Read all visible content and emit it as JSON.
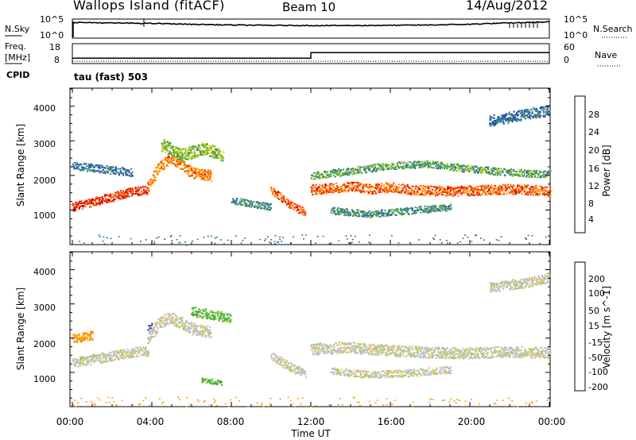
{
  "header": {
    "station": "Wallops Island (fitACF)",
    "beam": "Beam 10",
    "date": "14/Aug/2012"
  },
  "top_panels": {
    "nsky_label": "N.Sky",
    "nsearch_label": "N.Search",
    "noise_ticks": [
      "10^5",
      "10^0"
    ],
    "freq_label_line1": "Freq.",
    "freq_label_line2": "[MHz]",
    "freq_ticks": [
      "18",
      "8"
    ],
    "nave_label": "Nave",
    "nave_ticks": [
      "60",
      "0"
    ],
    "cpid_label": "CPID",
    "cpid_value": "tau (fast) 503"
  },
  "axes": {
    "ylabel": "Slant Range [km]",
    "xlabel": "Time UT",
    "y_ticks": [
      "1000",
      "2000",
      "3000",
      "4000"
    ],
    "x_ticks": [
      "00:00",
      "04:00",
      "08:00",
      "12:00",
      "16:00",
      "20:00",
      "00:00"
    ]
  },
  "colors": {
    "power_scale": [
      "#0000ee",
      "#2244cc",
      "#2e6e9e",
      "#3a8a6a",
      "#66b33a",
      "#c8d200",
      "#ffb000",
      "#ff7a00",
      "#f03000",
      "#e00000"
    ],
    "velocity_scale": [
      "#2233cc",
      "#227733",
      "#33aa33",
      "#99cc33",
      "#c0c0c0",
      "#ffcc33",
      "#ff9900",
      "#ff6600",
      "#ee2200",
      "#dd0000"
    ]
  },
  "chart_data": [
    {
      "type": "line",
      "title": "N.Sky / N.Search",
      "x_range_hours": [
        0,
        24
      ],
      "y_scale": "log",
      "ylim": [
        1,
        100000
      ],
      "series": [
        {
          "name": "N.Sky",
          "x": [
            0,
            2,
            4,
            6,
            8,
            10,
            12,
            14,
            16,
            18,
            20,
            22,
            24
          ],
          "values": [
            30000,
            20000,
            15000,
            8000,
            5000,
            4000,
            3500,
            3500,
            4000,
            5000,
            8000,
            20000,
            40000
          ]
        }
      ]
    },
    {
      "type": "line",
      "title": "Freq. / Nave",
      "x_range_hours": [
        0,
        24
      ],
      "freq_ylim": [
        8,
        18
      ],
      "nave_ylim": [
        0,
        60
      ],
      "series": [
        {
          "name": "Freq.",
          "x": [
            0,
            12,
            12,
            24
          ],
          "values": [
            10.5,
            10.5,
            13.5,
            13.5
          ]
        },
        {
          "name": "Nave",
          "x": [
            0,
            24
          ],
          "values": [
            5,
            5
          ]
        }
      ]
    },
    {
      "type": "heatmap",
      "title": "Power [dB]",
      "x_range_hours": [
        0,
        24
      ],
      "ylim": [
        0,
        4500
      ],
      "colorbar_label": "Power [dB]",
      "colorbar_ticks": [
        4,
        8,
        12,
        16,
        20,
        24,
        28
      ],
      "colorbar_range": [
        0,
        30
      ],
      "features": [
        {
          "t": [
            0,
            1,
            2,
            3,
            3.8
          ],
          "r": [
            1100,
            1250,
            1400,
            1550,
            1600
          ],
          "w": 180,
          "p": 26
        },
        {
          "t": [
            3.8,
            4.4,
            5,
            6,
            7
          ],
          "r": [
            1700,
            2300,
            2500,
            2100,
            2000
          ],
          "w": 220,
          "p": 22
        },
        {
          "t": [
            4.5,
            5.5,
            6.6,
            7.6
          ],
          "r": [
            2900,
            2600,
            2800,
            2600
          ],
          "w": 260,
          "p": 14
        },
        {
          "t": [
            10,
            11,
            11.7
          ],
          "r": [
            1600,
            1150,
            950
          ],
          "w": 160,
          "p": 24
        },
        {
          "t": [
            12,
            13,
            14,
            15,
            16,
            17,
            18,
            19,
            20,
            21,
            22,
            23,
            24
          ],
          "r": [
            1600,
            1650,
            1700,
            1620,
            1680,
            1600,
            1580,
            1560,
            1580,
            1600,
            1620,
            1600,
            1550
          ],
          "w": 200,
          "p": 24
        },
        {
          "t": [
            12,
            14,
            16,
            18,
            20,
            22,
            24
          ],
          "r": [
            2000,
            2150,
            2300,
            2350,
            2200,
            2100,
            2050
          ],
          "w": 150,
          "p": 12
        },
        {
          "t": [
            13,
            15,
            17,
            19
          ],
          "r": [
            1000,
            900,
            1000,
            1100
          ],
          "w": 140,
          "p": 10
        },
        {
          "t": [
            21,
            22.5,
            24
          ],
          "r": [
            3600,
            3750,
            3900
          ],
          "w": 220,
          "p": 8
        },
        {
          "t": [
            0,
            1.5,
            3
          ],
          "r": [
            2300,
            2200,
            2100
          ],
          "w": 160,
          "p": 8
        },
        {
          "t": [
            8,
            9,
            10
          ],
          "r": [
            1300,
            1200,
            1100
          ],
          "w": 140,
          "p": 10
        }
      ]
    },
    {
      "type": "heatmap",
      "title": "Velocity [m s^-1]",
      "x_range_hours": [
        0,
        24
      ],
      "ylim": [
        0,
        4500
      ],
      "colorbar_label": "Velocity [m s^-1]",
      "colorbar_ticks": [
        200,
        100,
        50,
        15,
        -15,
        -50,
        -100,
        -200
      ],
      "features": [
        {
          "t": [
            0,
            1,
            2,
            3,
            3.8
          ],
          "r": [
            1300,
            1400,
            1500,
            1600,
            1650
          ],
          "w": 200,
          "v": 0
        },
        {
          "t": [
            3.8,
            4.4,
            5,
            6,
            7
          ],
          "r": [
            2000,
            2500,
            2600,
            2300,
            2200
          ],
          "w": 250,
          "v": 0
        },
        {
          "t": [
            12,
            14,
            16,
            18,
            20,
            22,
            24
          ],
          "r": [
            1700,
            1750,
            1650,
            1600,
            1580,
            1620,
            1580
          ],
          "w": 230,
          "v": 0
        },
        {
          "t": [
            13,
            15,
            17,
            19
          ],
          "r": [
            1050,
            950,
            1000,
            1100
          ],
          "w": 150,
          "v": 0
        },
        {
          "t": [
            10,
            11,
            11.7
          ],
          "r": [
            1500,
            1150,
            1000
          ],
          "w": 180,
          "v": 0
        },
        {
          "t": [
            21,
            23,
            24
          ],
          "r": [
            3500,
            3650,
            3800
          ],
          "w": 200,
          "v": 0
        },
        {
          "t": [
            0,
            1
          ],
          "r": [
            2000,
            2100
          ],
          "w": 180,
          "v": -60
        },
        {
          "t": [
            3.8,
            4.0
          ],
          "r": [
            2300,
            2450
          ],
          "w": 120,
          "v": 180
        },
        {
          "t": [
            6.5,
            7.5
          ],
          "r": [
            800,
            700
          ],
          "w": 100,
          "v": 40
        },
        {
          "t": [
            6,
            7,
            8
          ],
          "r": [
            2800,
            2700,
            2600
          ],
          "w": 200,
          "v": 30
        }
      ]
    }
  ]
}
